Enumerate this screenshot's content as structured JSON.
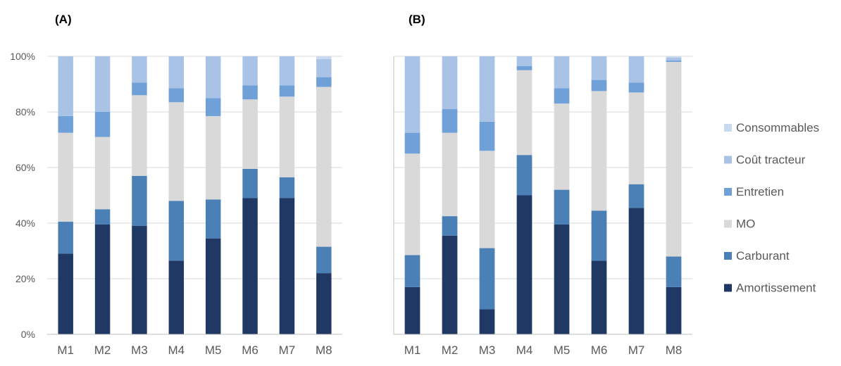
{
  "chart_data": [
    {
      "type": "bar",
      "stacked": true,
      "panel_label": "(A)",
      "categories": [
        "M1",
        "M2",
        "M3",
        "M4",
        "M5",
        "M6",
        "M7",
        "M8"
      ],
      "y_ticks": [
        "0%",
        "20%",
        "40%",
        "60%",
        "80%",
        "100%"
      ],
      "ylim": [
        0,
        100
      ],
      "grid": true,
      "series": [
        {
          "name": "Amortissement",
          "color": "#203864",
          "values": [
            29,
            39.5,
            39,
            26.5,
            34.5,
            49,
            49,
            22
          ]
        },
        {
          "name": "Carburant",
          "color": "#4a80b6",
          "values": [
            11.5,
            5.5,
            18,
            21.5,
            14,
            10.5,
            7.5,
            9.5
          ]
        },
        {
          "name": "MO",
          "color": "#d9d9d9",
          "values": [
            32,
            26,
            29,
            35.5,
            30,
            25,
            29,
            57.5
          ]
        },
        {
          "name": "Entretien",
          "color": "#6fa0d8",
          "values": [
            6,
            9,
            4.5,
            5,
            6.5,
            5,
            4,
            3.5
          ]
        },
        {
          "name": "Coût tracteur",
          "color": "#a9c3e6",
          "values": [
            21.5,
            20,
            9.5,
            11.5,
            15,
            10.5,
            10.5,
            6.5
          ]
        },
        {
          "name": "Consommables",
          "color": "#c9daf0",
          "values": [
            0,
            0,
            0,
            0,
            0,
            0,
            0,
            1
          ]
        }
      ]
    },
    {
      "type": "bar",
      "stacked": true,
      "panel_label": "(B)",
      "categories": [
        "M1",
        "M2",
        "M3",
        "M4",
        "M5",
        "M6",
        "M7",
        "M8"
      ],
      "ylim": [
        0,
        100
      ],
      "grid": true,
      "series": [
        {
          "name": "Amortissement",
          "color": "#203864",
          "values": [
            17,
            35.5,
            9,
            50,
            39.5,
            26.5,
            45.5,
            17
          ]
        },
        {
          "name": "Carburant",
          "color": "#4a80b6",
          "values": [
            11.5,
            7,
            22,
            14.5,
            12.5,
            18,
            8.5,
            11
          ]
        },
        {
          "name": "MO",
          "color": "#d9d9d9",
          "values": [
            36.5,
            30,
            35,
            30.5,
            31,
            43,
            33,
            70
          ]
        },
        {
          "name": "Entretien",
          "color": "#6fa0d8",
          "values": [
            7.5,
            8.5,
            10.5,
            1.5,
            5.5,
            4,
            3.5,
            0.5
          ]
        },
        {
          "name": "Coût tracteur",
          "color": "#a9c3e6",
          "values": [
            27.5,
            19,
            23.5,
            3.5,
            11.5,
            8.5,
            9.5,
            1
          ]
        },
        {
          "name": "Consommables",
          "color": "#c9daf0",
          "values": [
            0,
            0,
            0,
            0,
            0,
            0,
            0,
            0.5
          ]
        }
      ]
    }
  ],
  "legend": {
    "placement": "right",
    "items": [
      {
        "name": "Consommables",
        "color": "#c9daf0"
      },
      {
        "name": "Coût tracteur",
        "color": "#a9c3e6"
      },
      {
        "name": "Entretien",
        "color": "#6fa0d8"
      },
      {
        "name": "MO",
        "color": "#d9d9d9"
      },
      {
        "name": "Carburant",
        "color": "#4a80b6"
      },
      {
        "name": "Amortissement",
        "color": "#203864"
      }
    ]
  }
}
